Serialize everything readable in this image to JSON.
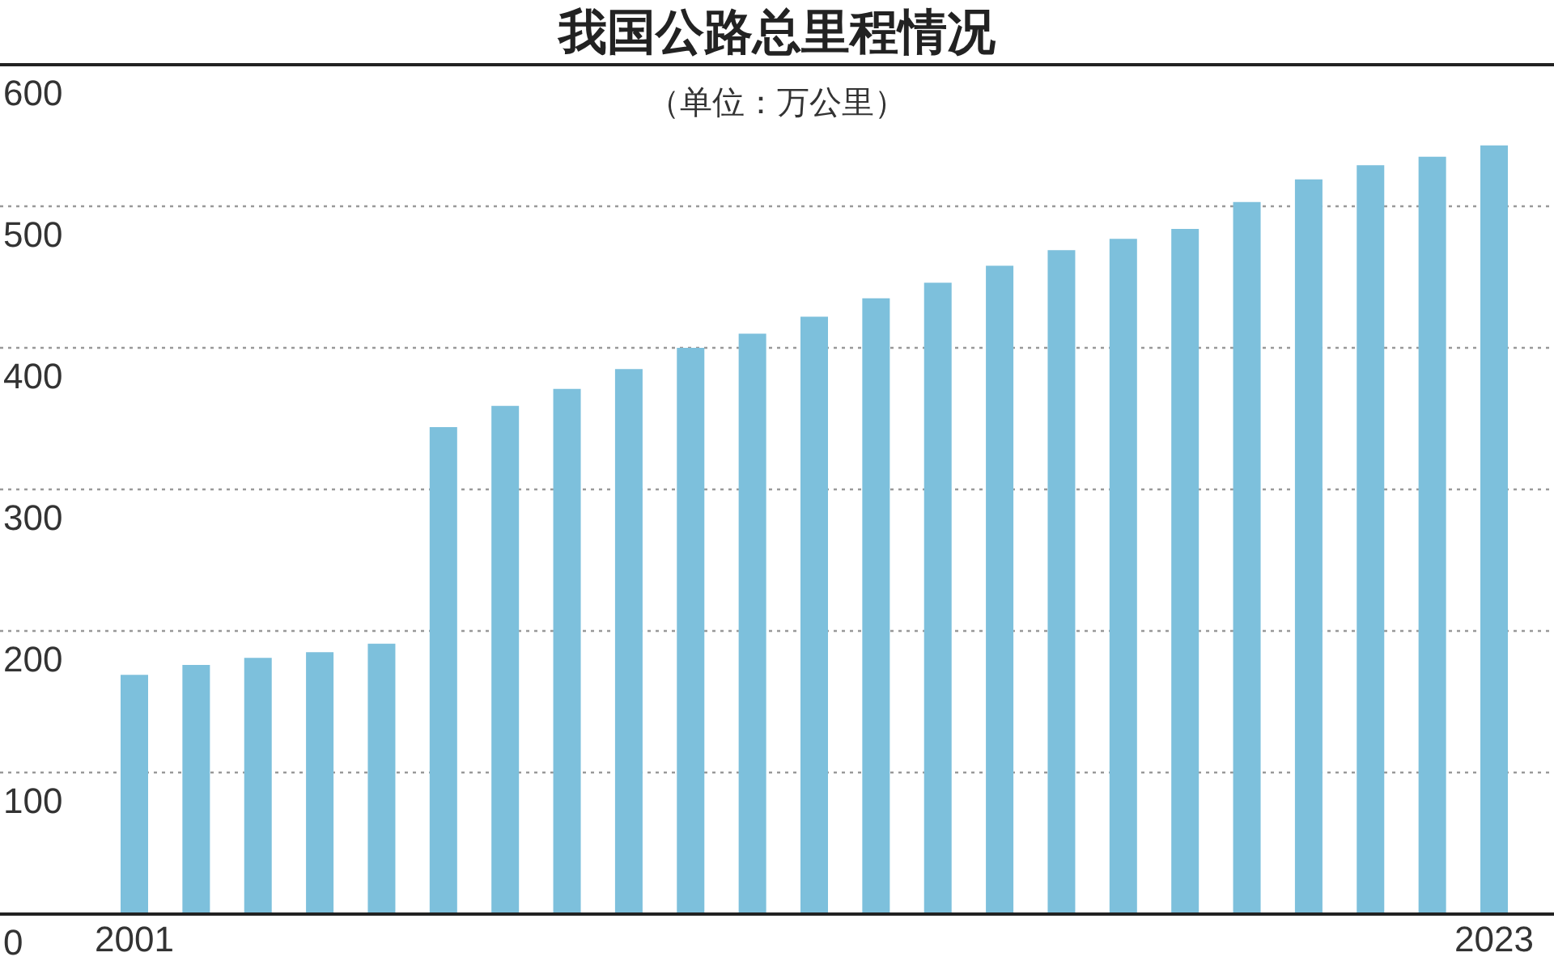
{
  "chart_data": {
    "type": "bar",
    "title": "我国公路总里程情况",
    "subtitle": "（单位：万公里）",
    "categories": [
      "2001",
      null,
      null,
      null,
      null,
      null,
      null,
      null,
      null,
      null,
      null,
      null,
      null,
      null,
      null,
      null,
      null,
      null,
      null,
      null,
      null,
      null,
      "2023"
    ],
    "values": [
      169,
      176,
      181,
      185,
      191,
      344,
      359,
      371,
      385,
      400,
      410,
      422,
      435,
      446,
      458,
      469,
      477,
      484,
      503,
      519,
      529,
      535,
      543
    ],
    "color": "#7dc0dc",
    "ylim": [
      0,
      600
    ],
    "yticks": [
      0,
      100,
      200,
      300,
      400,
      500,
      600
    ],
    "grid": "y"
  }
}
